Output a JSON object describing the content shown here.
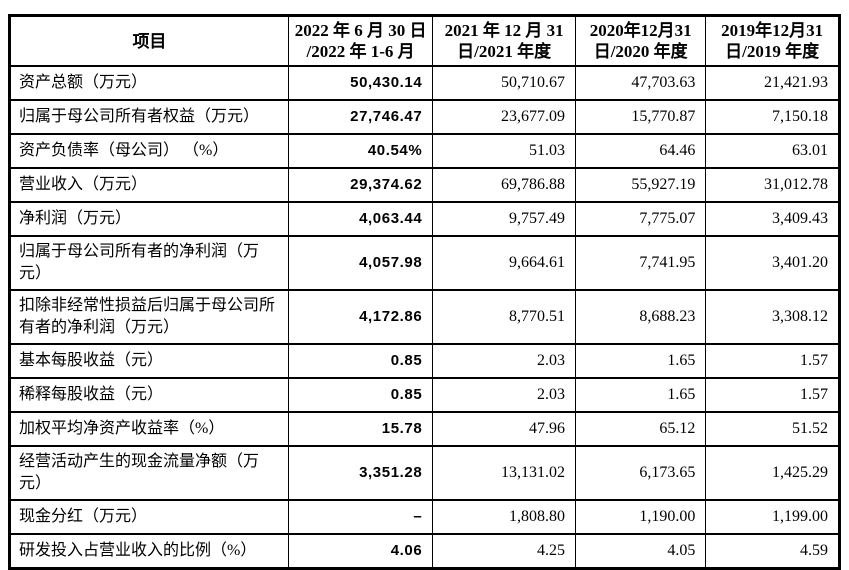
{
  "colors": {
    "border": "#000000",
    "text": "#000000",
    "background": "#ffffff"
  },
  "table": {
    "name": "financial-summary-table",
    "columns": [
      "项目",
      "2022 年 6 月 30 日\n/2022 年 1-6 月",
      "2021 年 12 月 31\n日/2021 年度",
      "2020年12月31\n日/2020 年度",
      "2019年12月31\n日/2019 年度"
    ],
    "rows": [
      {
        "label": "资产总额（万元）",
        "values": [
          "50,430.14",
          "50,710.67",
          "47,703.63",
          "21,421.93"
        ]
      },
      {
        "label": "归属于母公司所有者权益（万元）",
        "values": [
          "27,746.47",
          "23,677.09",
          "15,770.87",
          "7,150.18"
        ]
      },
      {
        "label": "资产负债率（母公司） （%）",
        "values": [
          "40.54%",
          "51.03",
          "64.46",
          "63.01"
        ]
      },
      {
        "label": "营业收入（万元）",
        "values": [
          "29,374.62",
          "69,786.88",
          "55,927.19",
          "31,012.78"
        ]
      },
      {
        "label": "净利润（万元）",
        "values": [
          "4,063.44",
          "9,757.49",
          "7,775.07",
          "3,409.43"
        ]
      },
      {
        "label": "归属于母公司所有者的净利润（万元）",
        "values": [
          "4,057.98",
          "9,664.61",
          "7,741.95",
          "3,401.20"
        ]
      },
      {
        "label": "扣除非经常性损益后归属于母公司所有者的净利润（万元）",
        "values": [
          "4,172.86",
          "8,770.51",
          "8,688.23",
          "3,308.12"
        ]
      },
      {
        "label": "基本每股收益（元）",
        "values": [
          "0.85",
          "2.03",
          "1.65",
          "1.57"
        ]
      },
      {
        "label": "稀释每股收益（元）",
        "values": [
          "0.85",
          "2.03",
          "1.65",
          "1.57"
        ]
      },
      {
        "label": "加权平均净资产收益率（%）",
        "values": [
          "15.78",
          "47.96",
          "65.12",
          "51.52"
        ]
      },
      {
        "label": "经营活动产生的现金流量净额（万元）",
        "values": [
          "3,351.28",
          "13,131.02",
          "6,173.65",
          "1,425.29"
        ]
      },
      {
        "label": "现金分红（万元）",
        "values": [
          "–",
          "1,808.80",
          "1,190.00",
          "1,199.00"
        ]
      },
      {
        "label": "研发投入占营业收入的比例（%）",
        "values": [
          "4.06",
          "4.25",
          "4.05",
          "4.59"
        ]
      }
    ]
  }
}
